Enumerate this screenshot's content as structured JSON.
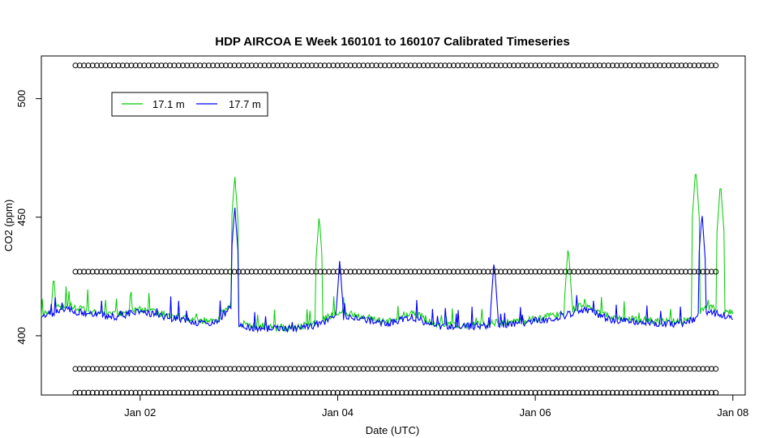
{
  "chart_data": {
    "type": "line",
    "title": "HDP AIRCOA E  Week 160101 to 160107  Calibrated Timeseries",
    "xlabel": "Date (UTC)",
    "ylabel": "CO2 (ppm)",
    "x_ticks": [
      "Jan 02",
      "Jan 04",
      "Jan 06",
      "Jan 08"
    ],
    "y_ticks": [
      "400",
      "450",
      "500"
    ],
    "xlim": [
      "2016-01-01 00:00",
      "2016-01-08 03:00"
    ],
    "ylim": [
      375,
      518
    ],
    "grid": false,
    "legend": {
      "position": "top-left",
      "entries": [
        "17.1 m",
        "17.7 m"
      ]
    },
    "series": [
      {
        "name": "17.1 m",
        "color": "#00cc00",
        "x": [
          "2016-01-01 00:00",
          "2016-01-01 06:00",
          "2016-01-01 12:00",
          "2016-01-01 18:00",
          "2016-01-02 00:00",
          "2016-01-02 06:00",
          "2016-01-02 12:00",
          "2016-01-02 18:00",
          "2016-01-02 22:00",
          "2016-01-03 00:00",
          "2016-01-03 06:00",
          "2016-01-03 12:00",
          "2016-01-03 18:00",
          "2016-01-04 00:00",
          "2016-01-04 06:00",
          "2016-01-04 12:00",
          "2016-01-04 18:00",
          "2016-01-05 00:00",
          "2016-01-05 06:00",
          "2016-01-05 12:00",
          "2016-01-05 18:00",
          "2016-01-06 00:00",
          "2016-01-06 06:00",
          "2016-01-06 12:00",
          "2016-01-06 18:00",
          "2016-01-07 00:00",
          "2016-01-07 06:00",
          "2016-01-07 12:00",
          "2016-01-07 18:00",
          "2016-01-08 00:00"
        ],
        "values": [
          409,
          413,
          410,
          409,
          411,
          409,
          407,
          406,
          414,
          405,
          404,
          403,
          405,
          410,
          408,
          406,
          410,
          405,
          404,
          405,
          406,
          407,
          409,
          413,
          408,
          407,
          406,
          406,
          412,
          410
        ],
        "peaks": [
          {
            "x": "2016-01-01 03:00",
            "y": 426
          },
          {
            "x": "2016-01-02 23:00",
            "y": 468
          },
          {
            "x": "2016-01-03 19:30",
            "y": 451
          },
          {
            "x": "2016-01-06 08:00",
            "y": 438
          },
          {
            "x": "2016-01-07 15:00",
            "y": 471
          },
          {
            "x": "2016-01-07 21:00",
            "y": 465
          }
        ]
      },
      {
        "name": "17.7 m",
        "color": "#0000ff",
        "x": [
          "2016-01-01 00:00",
          "2016-01-01 06:00",
          "2016-01-01 12:00",
          "2016-01-01 18:00",
          "2016-01-02 00:00",
          "2016-01-02 06:00",
          "2016-01-02 12:00",
          "2016-01-02 18:00",
          "2016-01-02 22:00",
          "2016-01-03 00:00",
          "2016-01-03 06:00",
          "2016-01-03 12:00",
          "2016-01-03 18:00",
          "2016-01-04 00:00",
          "2016-01-04 06:00",
          "2016-01-04 12:00",
          "2016-01-04 18:00",
          "2016-01-05 00:00",
          "2016-01-05 06:00",
          "2016-01-05 12:00",
          "2016-01-05 18:00",
          "2016-01-06 00:00",
          "2016-01-06 06:00",
          "2016-01-06 12:00",
          "2016-01-06 18:00",
          "2016-01-07 00:00",
          "2016-01-07 06:00",
          "2016-01-07 12:00",
          "2016-01-07 18:00",
          "2016-01-08 00:00"
        ],
        "values": [
          408,
          411,
          409,
          408,
          410,
          408,
          406,
          405,
          412,
          404,
          403,
          403,
          404,
          408,
          407,
          405,
          408,
          404,
          404,
          404,
          405,
          406,
          408,
          411,
          407,
          406,
          405,
          405,
          410,
          408
        ],
        "peaks": [
          {
            "x": "2016-01-02 23:00",
            "y": 455
          },
          {
            "x": "2016-01-04 00:30",
            "y": 432
          },
          {
            "x": "2016-01-05 14:00",
            "y": 432
          },
          {
            "x": "2016-01-07 16:30",
            "y": 452
          }
        ]
      }
    ],
    "reference_levels": [
      {
        "y": 514,
        "marker": "o"
      },
      {
        "y": 427,
        "marker": "o"
      },
      {
        "y": 386,
        "marker": "o"
      },
      {
        "y": 376,
        "marker": "o"
      }
    ]
  }
}
